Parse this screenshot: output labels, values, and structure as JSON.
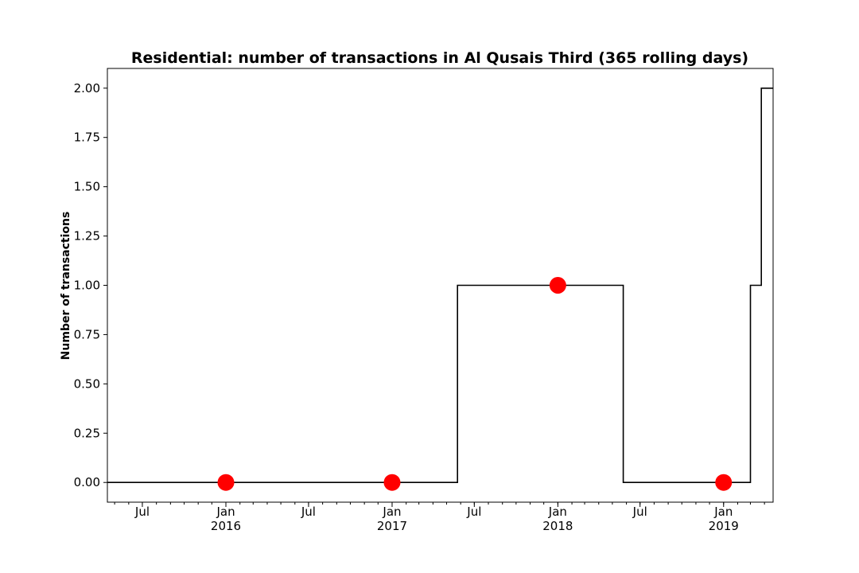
{
  "chart_data": {
    "type": "line",
    "title": "Residential: number of transactions in Al Qusais Third (365 rolling days)",
    "xlabel": "",
    "ylabel": "Number of transactions",
    "xlim": [
      "2015-04-15",
      "2019-04-20"
    ],
    "ylim": [
      -0.1,
      2.1
    ],
    "y_ticks": [
      0.0,
      0.25,
      0.5,
      0.75,
      1.0,
      1.25,
      1.5,
      1.75,
      2.0
    ],
    "y_tick_labels": [
      "0.00",
      "0.25",
      "0.50",
      "0.75",
      "1.00",
      "1.25",
      "1.50",
      "1.75",
      "2.00"
    ],
    "x_ticks": [
      {
        "date": "2015-07-01",
        "label": "Jul",
        "year": ""
      },
      {
        "date": "2016-01-01",
        "label": "Jan",
        "year": "2016"
      },
      {
        "date": "2016-07-01",
        "label": "Jul",
        "year": ""
      },
      {
        "date": "2017-01-01",
        "label": "Jan",
        "year": "2017"
      },
      {
        "date": "2017-07-01",
        "label": "Jul",
        "year": ""
      },
      {
        "date": "2018-01-01",
        "label": "Jan",
        "year": "2018"
      },
      {
        "date": "2018-07-01",
        "label": "Jul",
        "year": ""
      },
      {
        "date": "2019-01-01",
        "label": "Jan",
        "year": "2019"
      }
    ],
    "series": [
      {
        "style": "step",
        "color": "#000000",
        "points": [
          {
            "x": "2015-04-15",
            "y": 0
          },
          {
            "x": "2017-05-25",
            "y": 0
          },
          {
            "x": "2017-05-25",
            "y": 1
          },
          {
            "x": "2018-05-25",
            "y": 1
          },
          {
            "x": "2018-05-25",
            "y": 0
          },
          {
            "x": "2019-03-01",
            "y": 0
          },
          {
            "x": "2019-03-01",
            "y": 1
          },
          {
            "x": "2019-03-25",
            "y": 1
          },
          {
            "x": "2019-03-25",
            "y": 2
          },
          {
            "x": "2019-04-20",
            "y": 2
          }
        ]
      },
      {
        "style": "markers",
        "color": "#ff0000",
        "points": [
          {
            "x": "2016-01-01",
            "y": 0
          },
          {
            "x": "2017-01-01",
            "y": 0
          },
          {
            "x": "2018-01-01",
            "y": 1
          },
          {
            "x": "2019-01-01",
            "y": 0
          }
        ]
      }
    ],
    "grid": false,
    "legend": "none"
  }
}
